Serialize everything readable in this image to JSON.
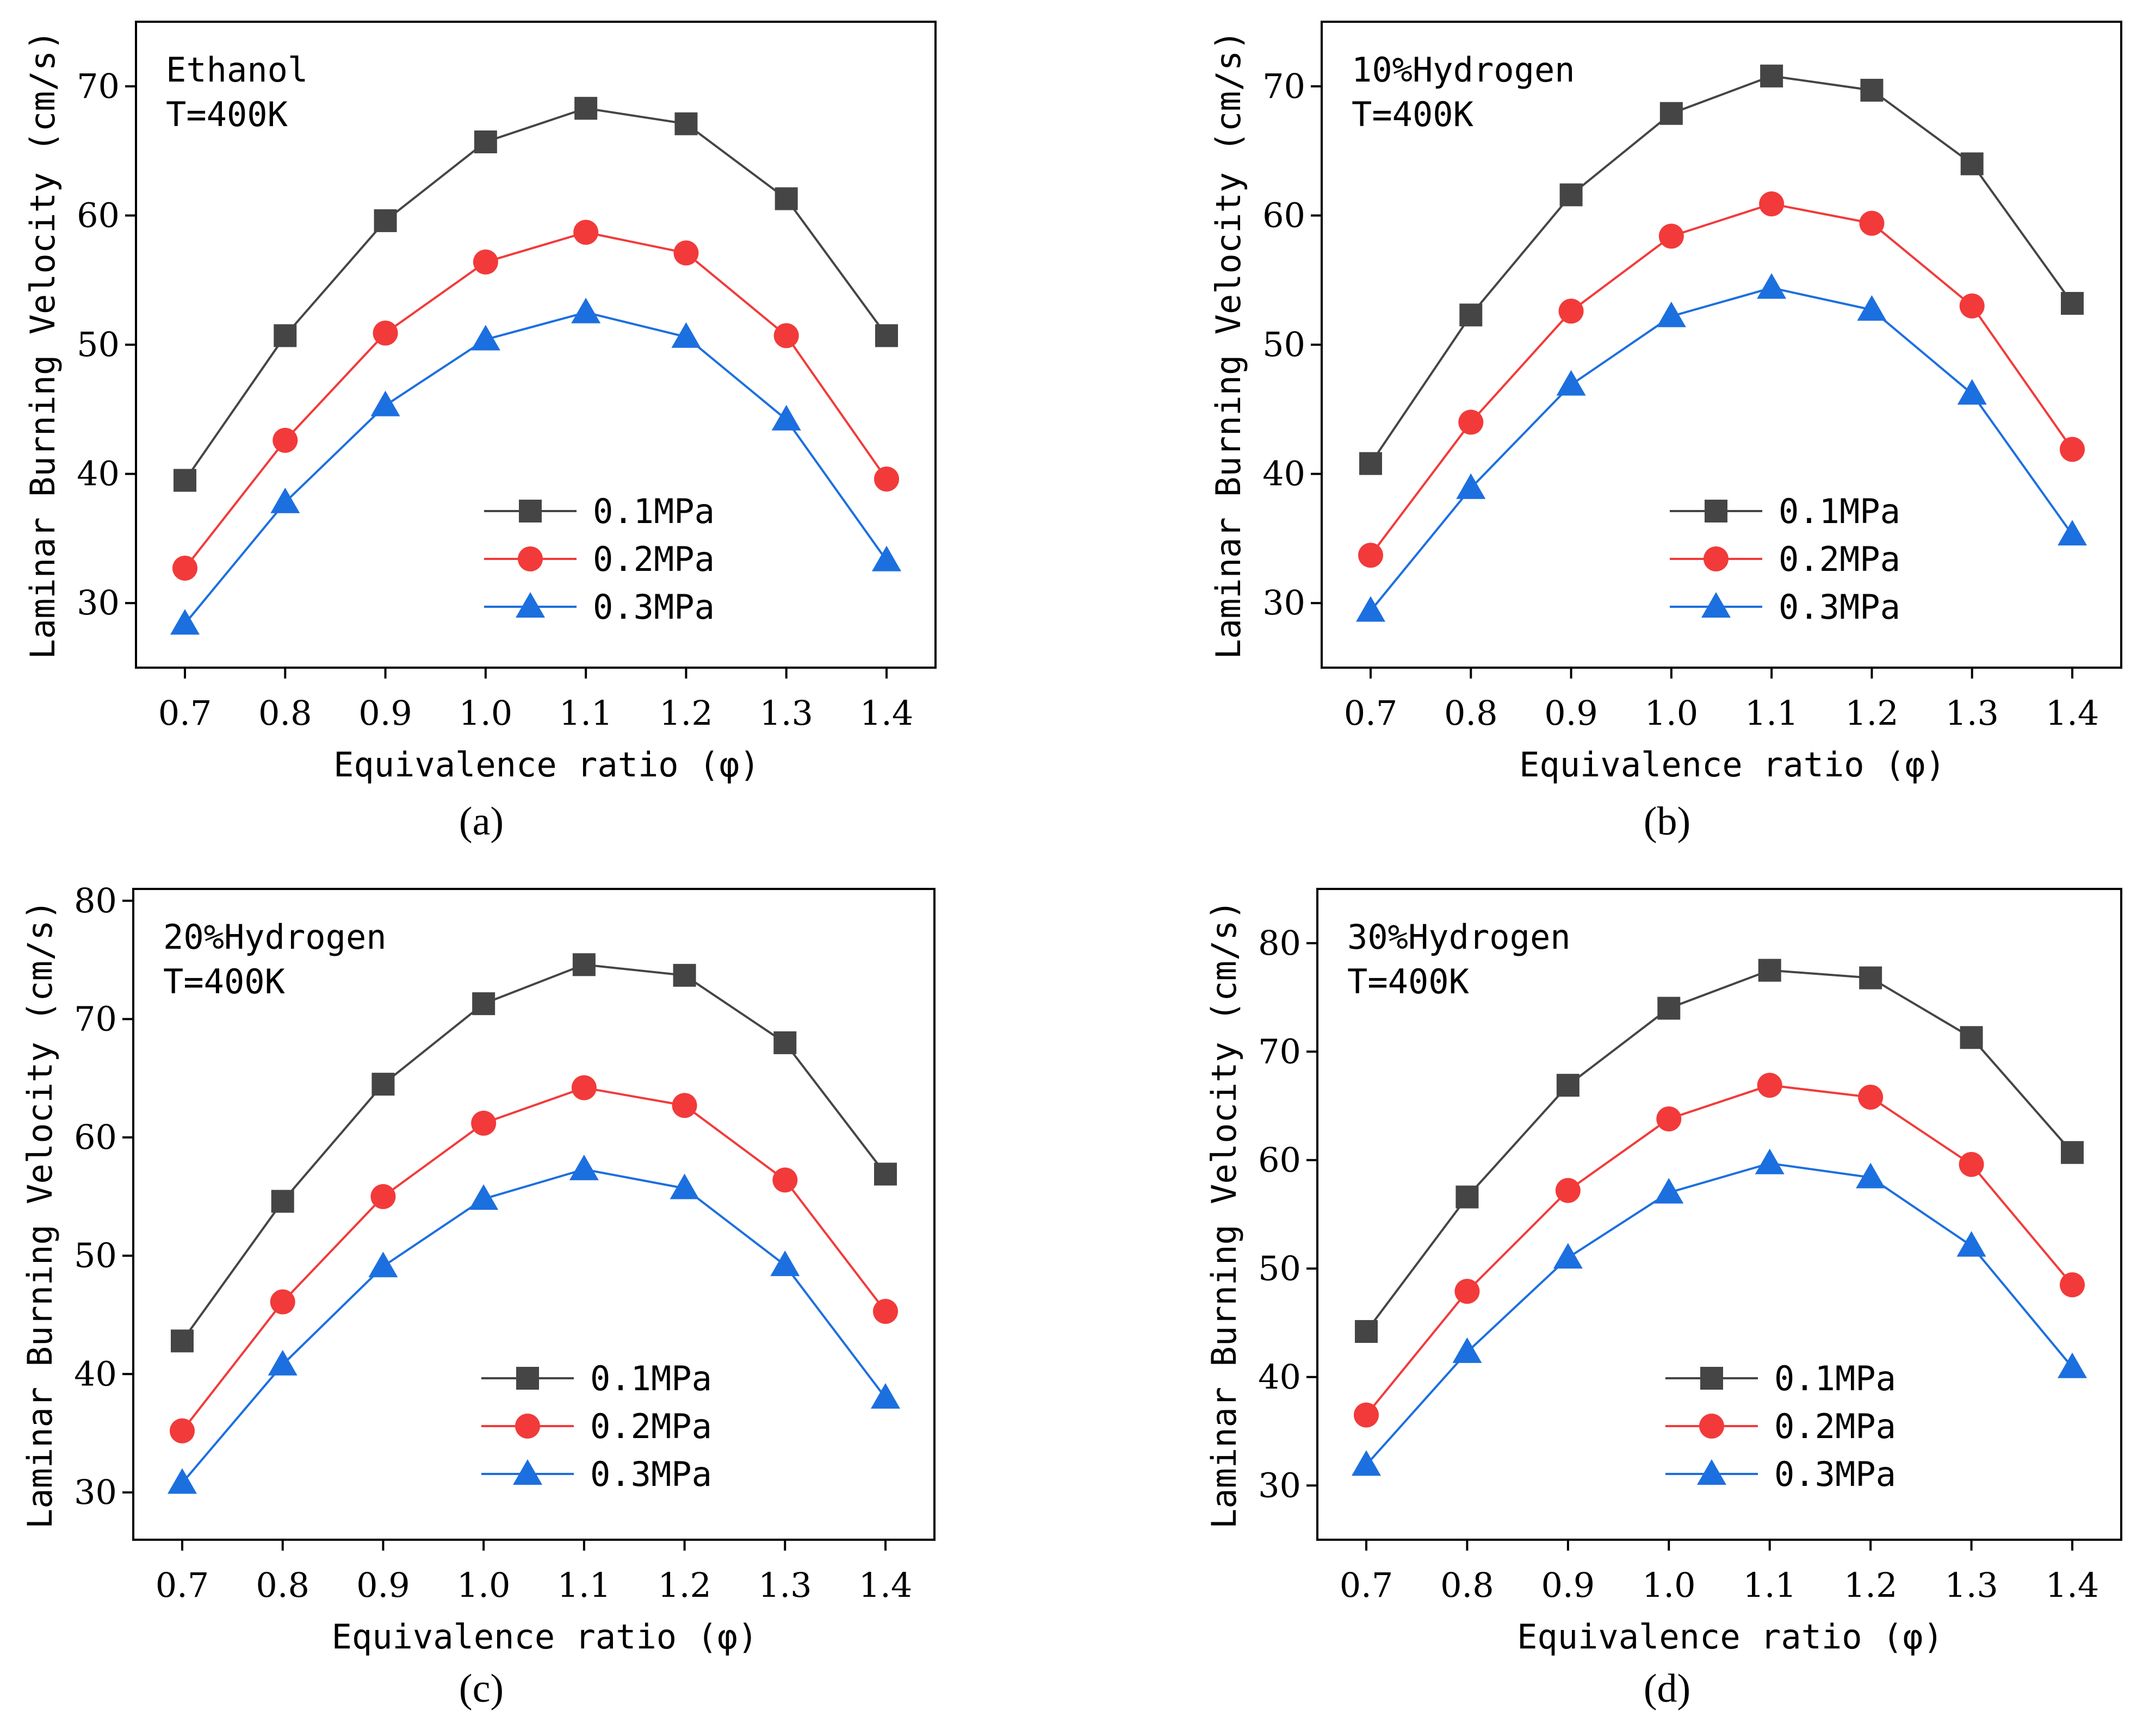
{
  "chart_data": [
    {
      "type": "line",
      "caption": "(a)",
      "annotation": [
        "Ethanol",
        "T=400K"
      ],
      "xlabel": "Equivalence ratio (φ)",
      "ylabel": "Laminar Burning Velocity (cm/s)",
      "x": [
        0.7,
        0.8,
        0.9,
        1.0,
        1.1,
        1.2,
        1.3,
        1.4
      ],
      "x_tick_labels": [
        "0.7",
        "0.8",
        "0.9",
        "1.0",
        "1.1",
        "1.2",
        "1.3",
        "1.4"
      ],
      "ylim": [
        25,
        75
      ],
      "yticks": [
        30,
        40,
        50,
        60,
        70
      ],
      "series": [
        {
          "name": "0.1MPa",
          "color": "#454545",
          "marker": "square",
          "values": [
            39.5,
            50.7,
            59.6,
            65.7,
            68.3,
            67.1,
            61.3,
            50.7
          ]
        },
        {
          "name": "0.2MPa",
          "color": "#f23a3a",
          "marker": "circle",
          "values": [
            32.7,
            42.6,
            50.9,
            56.4,
            58.7,
            57.1,
            50.7,
            39.6
          ]
        },
        {
          "name": "0.3MPa",
          "color": "#1c6fdf",
          "marker": "triangle",
          "values": [
            28.4,
            37.8,
            45.3,
            50.4,
            52.5,
            50.6,
            44.2,
            33.3
          ]
        }
      ]
    },
    {
      "type": "line",
      "caption": "(b)",
      "annotation": [
        "10%Hydrogen",
        "T=400K"
      ],
      "xlabel": "Equivalence ratio (φ)",
      "ylabel": "Laminar Burning Velocity (cm/s)",
      "x": [
        0.7,
        0.8,
        0.9,
        1.0,
        1.1,
        1.2,
        1.3,
        1.4
      ],
      "x_tick_labels": [
        "0.7",
        "0.8",
        "0.9",
        "1.0",
        "1.1",
        "1.2",
        "1.3",
        "1.4"
      ],
      "ylim": [
        25,
        75
      ],
      "yticks": [
        30,
        40,
        50,
        60,
        70
      ],
      "series": [
        {
          "name": "0.1MPa",
          "color": "#454545",
          "marker": "square",
          "values": [
            40.8,
            52.3,
            61.6,
            67.9,
            70.8,
            69.7,
            64.0,
            53.2
          ]
        },
        {
          "name": "0.2MPa",
          "color": "#f23a3a",
          "marker": "circle",
          "values": [
            33.7,
            44.0,
            52.6,
            58.4,
            60.9,
            59.4,
            53.0,
            41.9
          ]
        },
        {
          "name": "0.3MPa",
          "color": "#1c6fdf",
          "marker": "triangle",
          "values": [
            29.4,
            38.9,
            46.9,
            52.2,
            54.4,
            52.7,
            46.2,
            35.3
          ]
        }
      ]
    },
    {
      "type": "line",
      "caption": "(c)",
      "annotation": [
        "20%Hydrogen",
        "T=400K"
      ],
      "xlabel": "Equivalence ratio (φ)",
      "ylabel": "Laminar Burning Velocity (cm/s)",
      "x": [
        0.7,
        0.8,
        0.9,
        1.0,
        1.1,
        1.2,
        1.3,
        1.4
      ],
      "x_tick_labels": [
        "0.7",
        "0.8",
        "0.9",
        "1.0",
        "1.1",
        "1.2",
        "1.3",
        "1.4"
      ],
      "ylim": [
        26,
        81
      ],
      "yticks": [
        30,
        40,
        50,
        60,
        70,
        80
      ],
      "series": [
        {
          "name": "0.1MPa",
          "color": "#454545",
          "marker": "square",
          "values": [
            42.8,
            54.6,
            64.5,
            71.3,
            74.6,
            73.7,
            68.0,
            56.9
          ]
        },
        {
          "name": "0.2MPa",
          "color": "#f23a3a",
          "marker": "circle",
          "values": [
            35.2,
            46.1,
            55.0,
            61.2,
            64.2,
            62.7,
            56.4,
            45.3
          ]
        },
        {
          "name": "0.3MPa",
          "color": "#1c6fdf",
          "marker": "triangle",
          "values": [
            30.8,
            40.8,
            49.1,
            54.8,
            57.3,
            55.7,
            49.2,
            38.0
          ]
        }
      ]
    },
    {
      "type": "line",
      "caption": "(d)",
      "annotation": [
        "30%Hydrogen",
        "T=400K"
      ],
      "xlabel": "Equivalence ratio (φ)",
      "ylabel": "Laminar Burning Velocity (cm/s)",
      "x": [
        0.7,
        0.8,
        0.9,
        1.0,
        1.1,
        1.2,
        1.3,
        1.4
      ],
      "x_tick_labels": [
        "0.7",
        "0.8",
        "0.9",
        "1.0",
        "1.1",
        "1.2",
        "1.3",
        "1.4"
      ],
      "ylim": [
        25,
        85
      ],
      "yticks": [
        30,
        40,
        50,
        60,
        70,
        80
      ],
      "series": [
        {
          "name": "0.1MPa",
          "color": "#454545",
          "marker": "square",
          "values": [
            44.2,
            56.6,
            66.9,
            74.0,
            77.5,
            76.8,
            71.3,
            60.7
          ]
        },
        {
          "name": "0.2MPa",
          "color": "#f23a3a",
          "marker": "circle",
          "values": [
            36.5,
            47.9,
            57.2,
            63.8,
            66.9,
            65.8,
            59.6,
            48.5
          ]
        },
        {
          "name": "0.3MPa",
          "color": "#1c6fdf",
          "marker": "triangle",
          "values": [
            31.9,
            42.3,
            51.0,
            57.0,
            59.7,
            58.4,
            52.1,
            40.9
          ]
        }
      ]
    }
  ]
}
